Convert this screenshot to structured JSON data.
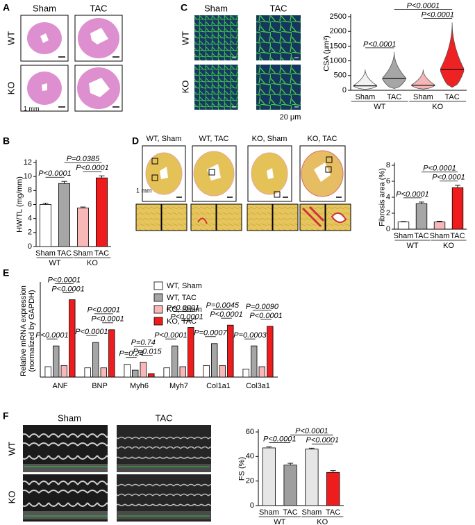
{
  "panel_labels": [
    "A",
    "B",
    "C",
    "D",
    "E",
    "F"
  ],
  "panel_a": {
    "columns": [
      "Sham",
      "TAC"
    ],
    "rows": [
      "WT",
      "KO"
    ],
    "scale_bar": "1 mm"
  },
  "panel_c_images": {
    "columns": [
      "Sham",
      "TAC"
    ],
    "rows": [
      "WT",
      "KO"
    ],
    "scale_bar": "20 μm"
  },
  "panel_d_images": {
    "columns": [
      "WT, Sham",
      "WT, TAC",
      "KO, Sham",
      "KO, TAC"
    ],
    "scale_bar": "1 mm"
  },
  "panel_f_images": {
    "columns": [
      "Sham",
      "TAC"
    ],
    "rows": [
      "WT",
      "KO"
    ]
  },
  "chart_data": [
    {
      "type": "violin",
      "y_label": "CSA (μm²)",
      "categories": [
        "Sham",
        "TAC",
        "Sham",
        "TAC"
      ],
      "groups": [
        "WT",
        "KO"
      ],
      "values": [
        150,
        400,
        170,
        700
      ],
      "min": [
        30,
        60,
        40,
        100
      ],
      "max": [
        700,
        1300,
        700,
        2300
      ],
      "colors": [
        "#f2f2f2",
        "#a6a6a6",
        "#f4b6b6",
        "#ee2222"
      ],
      "ylim": [
        0,
        2500
      ],
      "yticks": [
        0,
        500,
        1000,
        1500,
        2000,
        2500
      ],
      "comparisons": [
        {
          "label": "P<0.0001",
          "between": [
            0,
            1
          ]
        },
        {
          "label": "P<0.0001",
          "between": [
            2,
            3
          ]
        },
        {
          "label": "P<0.0001",
          "between": [
            1,
            3
          ]
        }
      ]
    },
    {
      "type": "bar",
      "y_label": "HW/TL (mg/mm)",
      "categories": [
        "Sham",
        "TAC",
        "Sham",
        "TAC"
      ],
      "groups": [
        "WT",
        "KO"
      ],
      "values": [
        6.0,
        9.0,
        5.5,
        9.8
      ],
      "errors": [
        0.2,
        0.3,
        0.15,
        0.3
      ],
      "colors": [
        "#ffffff",
        "#a6a6a6",
        "#f9b8b8",
        "#ee1c1c"
      ],
      "ylim": [
        0,
        12
      ],
      "yticks": [
        0,
        2,
        4,
        6,
        8,
        10,
        12
      ],
      "comparisons": [
        {
          "label": "P<0.0001",
          "between": [
            0,
            1
          ]
        },
        {
          "label": "P<0.0001",
          "between": [
            2,
            3
          ]
        },
        {
          "label": "P=0.0385",
          "between": [
            1,
            3
          ]
        }
      ]
    },
    {
      "type": "bar",
      "y_label": "Fibrosis area (%)",
      "categories": [
        "Sham",
        "TAC",
        "Sham",
        "TAC"
      ],
      "groups": [
        "WT",
        "KO"
      ],
      "values": [
        0.9,
        3.2,
        0.9,
        5.2
      ],
      "errors": [
        0.05,
        0.2,
        0.1,
        0.3
      ],
      "colors": [
        "#ffffff",
        "#a6a6a6",
        "#f9b8b8",
        "#ee1c1c"
      ],
      "ylim": [
        0,
        8
      ],
      "yticks": [
        0,
        2,
        4,
        6,
        8
      ],
      "comparisons": [
        {
          "label": "P<0.0001",
          "between": [
            0,
            1
          ]
        },
        {
          "label": "P<0.0001",
          "between": [
            2,
            3
          ]
        },
        {
          "label": "P<0.0001",
          "between": [
            1,
            3
          ]
        }
      ]
    },
    {
      "type": "grouped_bar",
      "y_label": [
        "Relative mRNA expression",
        "(normalized by GAPDH)"
      ],
      "categories": [
        "ANF",
        "BNP",
        "Myh6",
        "Myh7",
        "Col1a1",
        "Col3a1"
      ],
      "ylim": [
        0,
        8
      ],
      "series": [
        {
          "name": "WT, Sham",
          "color": "#ffffff",
          "values": [
            0.9,
            0.8,
            1.1,
            0.8,
            1.0,
            0.7
          ]
        },
        {
          "name": "WT, TAC",
          "color": "#a6a6a6",
          "values": [
            2.7,
            3.0,
            0.6,
            2.7,
            2.9,
            2.7
          ]
        },
        {
          "name": "KO, Sham",
          "color": "#f9b8b8",
          "values": [
            1.0,
            0.8,
            1.3,
            0.9,
            1.0,
            0.9
          ]
        },
        {
          "name": "KO, TAC",
          "color": "#ee1c1c",
          "values": [
            6.7,
            4.1,
            0.3,
            4.3,
            4.5,
            4.4
          ]
        }
      ],
      "comparisons": [
        {
          "label": "P<0.0001",
          "category": 0,
          "between": [
            0,
            1
          ]
        },
        {
          "label": "P<0.0001",
          "category": 0,
          "between": [
            2,
            3
          ]
        },
        {
          "label": "P<0.0001",
          "category": 0,
          "between": [
            1,
            3
          ]
        },
        {
          "label": "P<0.0001",
          "category": 1,
          "between": [
            0,
            1
          ]
        },
        {
          "label": "P<0.0001",
          "category": 1,
          "between": [
            2,
            3
          ]
        },
        {
          "label": "P<0.0001",
          "category": 1,
          "between": [
            1,
            3
          ]
        },
        {
          "label": "P=0.24",
          "category": 2,
          "between": [
            0,
            1
          ]
        },
        {
          "label": "P=0.015",
          "category": 2,
          "between": [
            2,
            3
          ]
        },
        {
          "label": "P=0.74",
          "category": 2,
          "between": [
            1,
            3
          ]
        },
        {
          "label": "P<0.0001",
          "category": 3,
          "between": [
            0,
            1
          ]
        },
        {
          "label": "P<0.0001",
          "category": 3,
          "between": [
            2,
            3
          ]
        },
        {
          "label": "P<0.0001",
          "category": 3,
          "between": [
            1,
            3
          ]
        },
        {
          "label": "P=0.0007",
          "category": 4,
          "between": [
            0,
            1
          ]
        },
        {
          "label": "P<0.0001",
          "category": 4,
          "between": [
            2,
            3
          ]
        },
        {
          "label": "P=0.0045",
          "category": 4,
          "between": [
            1,
            3
          ]
        },
        {
          "label": "P=0.0003",
          "category": 5,
          "between": [
            0,
            1
          ]
        },
        {
          "label": "P<0.0001",
          "category": 5,
          "between": [
            2,
            3
          ]
        },
        {
          "label": "P=0.0090",
          "category": 5,
          "between": [
            1,
            3
          ]
        }
      ]
    },
    {
      "type": "bar",
      "y_label": "FS (%)",
      "categories": [
        "Sham",
        "TAC",
        "Sham",
        "TAC"
      ],
      "groups": [
        "WT",
        "KO"
      ],
      "values": [
        47,
        33,
        46,
        27
      ],
      "errors": [
        0.8,
        1.5,
        0.8,
        1.5
      ],
      "colors": [
        "#e6e6e6",
        "#9e9e9e",
        "#e6e6e6",
        "#ee1c1c"
      ],
      "ylim": [
        0,
        60
      ],
      "yticks": [
        0,
        20,
        40,
        60
      ],
      "comparisons": [
        {
          "label": "P<0.0001",
          "between": [
            0,
            1
          ]
        },
        {
          "label": "P<0.0001",
          "between": [
            2,
            3
          ]
        },
        {
          "label": "P<0.0001",
          "between": [
            1,
            3
          ]
        }
      ]
    }
  ]
}
